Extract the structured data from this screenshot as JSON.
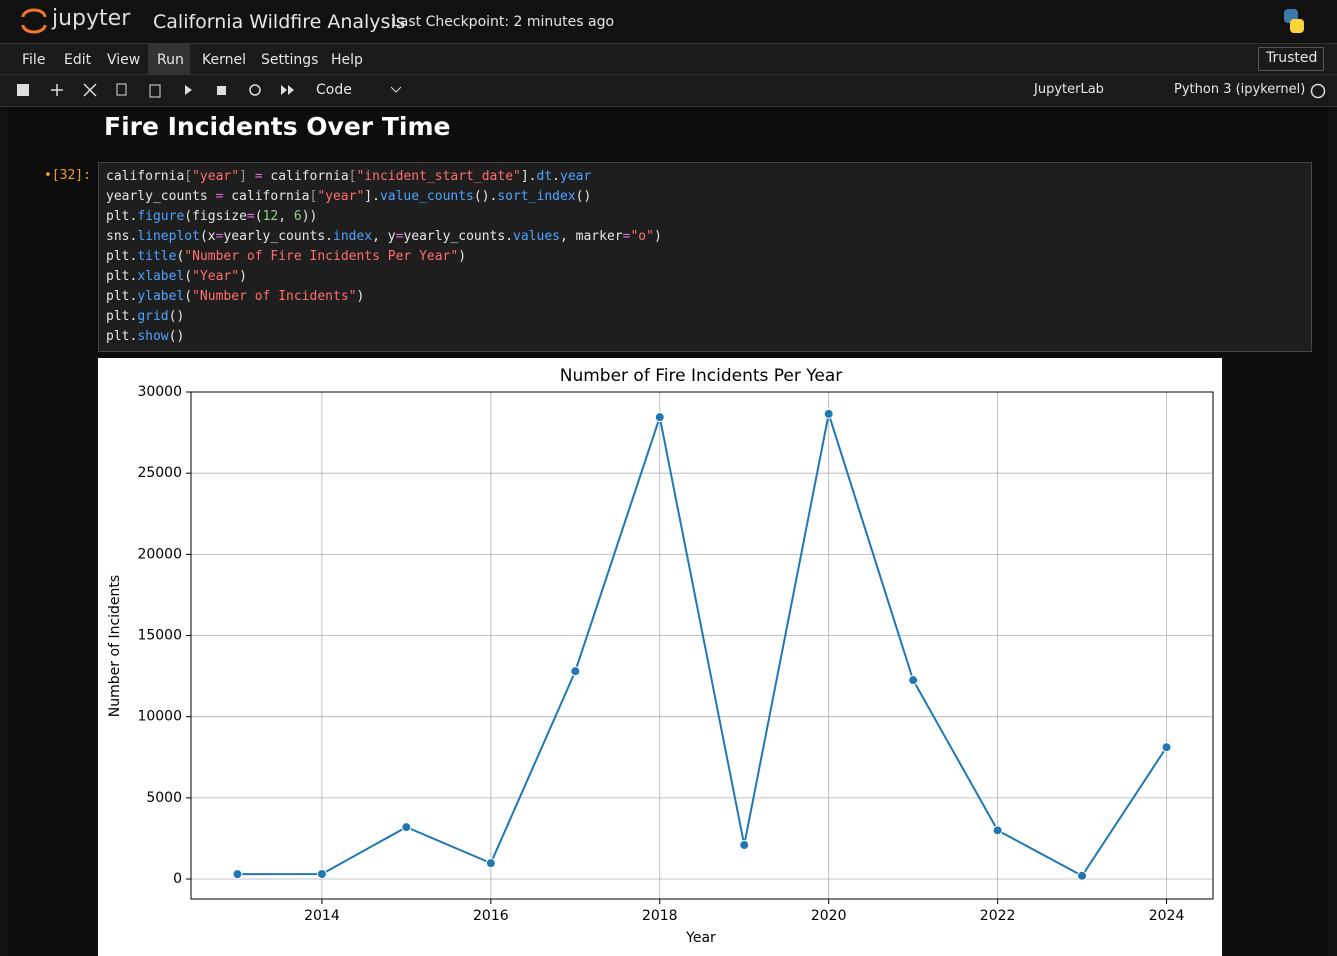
{
  "header": {
    "logo": "jupyter",
    "title": "California Wildfire Analysis",
    "checkpoint": "Last Checkpoint: 2 minutes ago"
  },
  "menu": [
    "File",
    "Edit",
    "View",
    "Run",
    "Kernel",
    "Settings",
    "Help"
  ],
  "trusted": "Trusted",
  "toolbar": {
    "cell_type": "Code",
    "jupyterlab": "JupyterLab",
    "kernel": "Python 3 (ipykernel)"
  },
  "notebook": {
    "heading": "Fire Incidents Over Time",
    "prompt": "•[32]:",
    "code": [
      [
        "california",
        "[",
        "\"year\"",
        "] ",
        "=",
        " california",
        "[",
        "\"incident_start_date\"",
        "].",
        "dt",
        ".",
        "year"
      ],
      [
        "yearly_counts ",
        "=",
        " california",
        "[",
        "\"year\"",
        "].",
        "value_counts",
        "().",
        "sort_index",
        "()"
      ],
      [
        "plt.",
        "figure",
        "(figsize",
        "=",
        "(",
        "12",
        ", ",
        "6",
        "))"
      ],
      [
        "sns.",
        "lineplot",
        "(x",
        "=",
        "yearly_counts.",
        "index",
        ", y",
        "=",
        "yearly_counts.",
        "values",
        ", marker",
        "=",
        "\"o\"",
        ")"
      ],
      [
        "plt.",
        "title",
        "(",
        "\"Number of Fire Incidents Per Year\"",
        ")"
      ],
      [
        "plt.",
        "xlabel",
        "(",
        "\"Year\"",
        ")"
      ],
      [
        "plt.",
        "ylabel",
        "(",
        "\"Number of Incidents\"",
        ")"
      ],
      [
        "plt.",
        "grid",
        "()"
      ],
      [
        "plt.",
        "show",
        "()"
      ]
    ]
  },
  "chart_data": {
    "type": "line",
    "title": "Number of Fire Incidents Per Year",
    "x_label": "Year",
    "y_label": "Number of Incidents",
    "x": [
      2013,
      2014,
      2015,
      2016,
      2017,
      2018,
      2019,
      2020,
      2021,
      2022,
      2023,
      2024
    ],
    "values": [
      300,
      310,
      3200,
      980,
      12800,
      28450,
      2100,
      28650,
      12250,
      3000,
      200,
      8120
    ],
    "color": "#1f77b4",
    "marker": "o",
    "grid": true,
    "xlim": [
      2012.45,
      2024.55
    ],
    "xticks": [
      2014,
      2016,
      2018,
      2020,
      2022,
      2024
    ],
    "ylim": [
      -1230,
      30000
    ],
    "yticks": [
      0,
      5000,
      10000,
      15000,
      20000,
      25000,
      30000
    ]
  }
}
